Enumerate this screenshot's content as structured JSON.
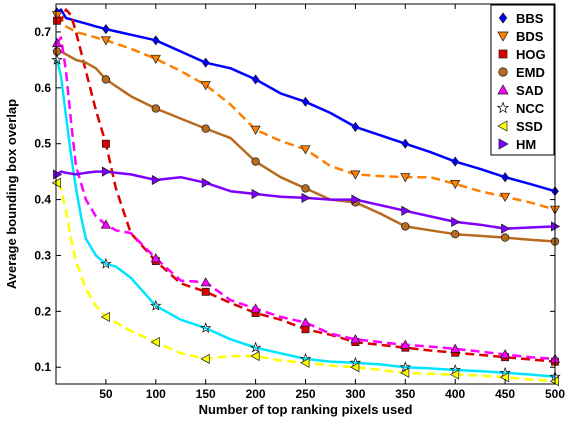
{
  "chart_data": {
    "type": "line",
    "title": "",
    "xlabel": "Number of top ranking pixels used",
    "ylabel": "Average bounding box overlap",
    "xlim": [
      0,
      500
    ],
    "ylim": [
      0.07,
      0.75
    ],
    "x_ticks": [
      50,
      100,
      150,
      200,
      250,
      300,
      350,
      400,
      450,
      500
    ],
    "y_ticks": [
      0.1,
      0.2,
      0.3,
      0.4,
      0.5,
      0.6,
      0.7
    ],
    "grid": false,
    "legend_position": "top-right",
    "series": [
      {
        "name": "BBS",
        "color": "#0000ff",
        "line_style": "solid",
        "marker": "diamond",
        "x": [
          1,
          5,
          10,
          20,
          30,
          40,
          50,
          75,
          100,
          125,
          150,
          175,
          200,
          225,
          250,
          275,
          300,
          325,
          350,
          375,
          400,
          425,
          450,
          475,
          500
        ],
        "y": [
          0.735,
          0.74,
          0.725,
          0.72,
          0.715,
          0.71,
          0.705,
          0.695,
          0.685,
          0.665,
          0.645,
          0.635,
          0.615,
          0.59,
          0.575,
          0.555,
          0.53,
          0.515,
          0.5,
          0.485,
          0.468,
          0.455,
          0.44,
          0.428,
          0.415
        ]
      },
      {
        "name": "BDS",
        "color": "#ff8000",
        "line_style": "dashed",
        "marker": "triangle-down",
        "x": [
          1,
          5,
          10,
          20,
          30,
          40,
          50,
          75,
          100,
          125,
          150,
          175,
          200,
          225,
          250,
          275,
          300,
          325,
          350,
          375,
          400,
          425,
          450,
          475,
          500
        ],
        "y": [
          0.73,
          0.725,
          0.71,
          0.7,
          0.695,
          0.69,
          0.685,
          0.67,
          0.652,
          0.63,
          0.605,
          0.57,
          0.525,
          0.505,
          0.49,
          0.46,
          0.445,
          0.442,
          0.44,
          0.44,
          0.428,
          0.415,
          0.405,
          0.395,
          0.382
        ]
      },
      {
        "name": "HOG",
        "color": "#dd0000",
        "line_style": "dashed",
        "marker": "square",
        "x": [
          1,
          5,
          10,
          15,
          20,
          30,
          40,
          50,
          60,
          75,
          100,
          125,
          150,
          175,
          200,
          225,
          250,
          275,
          300,
          325,
          350,
          375,
          400,
          425,
          450,
          475,
          500
        ],
        "y": [
          0.72,
          0.72,
          0.74,
          0.73,
          0.7,
          0.63,
          0.56,
          0.5,
          0.42,
          0.34,
          0.29,
          0.25,
          0.235,
          0.215,
          0.197,
          0.185,
          0.168,
          0.158,
          0.145,
          0.14,
          0.135,
          0.13,
          0.126,
          0.122,
          0.118,
          0.114,
          0.11
        ]
      },
      {
        "name": "EMD",
        "color": "#b86a1e",
        "line_style": "solid",
        "marker": "circle",
        "x": [
          1,
          5,
          10,
          20,
          30,
          40,
          50,
          75,
          100,
          125,
          150,
          175,
          200,
          225,
          250,
          275,
          300,
          325,
          350,
          375,
          400,
          425,
          450,
          475,
          500
        ],
        "y": [
          0.665,
          0.665,
          0.66,
          0.65,
          0.645,
          0.635,
          0.615,
          0.585,
          0.563,
          0.545,
          0.527,
          0.51,
          0.468,
          0.44,
          0.42,
          0.4,
          0.395,
          0.375,
          0.352,
          0.345,
          0.338,
          0.335,
          0.332,
          0.328,
          0.325
        ]
      },
      {
        "name": "SAD",
        "color": "#ff00ff",
        "line_style": "dashed",
        "marker": "triangle-up",
        "x": [
          1,
          5,
          10,
          15,
          20,
          30,
          40,
          50,
          60,
          75,
          100,
          125,
          150,
          175,
          200,
          225,
          250,
          275,
          300,
          325,
          350,
          375,
          400,
          425,
          450,
          475,
          500
        ],
        "y": [
          0.68,
          0.69,
          0.63,
          0.54,
          0.46,
          0.4,
          0.37,
          0.355,
          0.345,
          0.34,
          0.295,
          0.255,
          0.252,
          0.22,
          0.205,
          0.19,
          0.18,
          0.16,
          0.15,
          0.145,
          0.14,
          0.137,
          0.133,
          0.128,
          0.123,
          0.118,
          0.115
        ]
      },
      {
        "name": "NCC",
        "color": "#00e5ff",
        "line_style": "solid",
        "marker": "star",
        "x": [
          1,
          5,
          10,
          15,
          20,
          25,
          30,
          40,
          50,
          60,
          75,
          100,
          125,
          150,
          175,
          200,
          225,
          250,
          275,
          300,
          325,
          350,
          375,
          400,
          425,
          450,
          475,
          500
        ],
        "y": [
          0.65,
          0.62,
          0.55,
          0.48,
          0.42,
          0.37,
          0.33,
          0.3,
          0.285,
          0.28,
          0.26,
          0.21,
          0.185,
          0.17,
          0.15,
          0.135,
          0.125,
          0.115,
          0.11,
          0.108,
          0.105,
          0.1,
          0.098,
          0.095,
          0.093,
          0.09,
          0.087,
          0.083
        ]
      },
      {
        "name": "SSD",
        "color": "#ffff00",
        "line_style": "dashed",
        "marker": "triangle-left",
        "x": [
          1,
          5,
          10,
          15,
          20,
          30,
          40,
          50,
          60,
          75,
          100,
          125,
          150,
          175,
          200,
          225,
          250,
          275,
          300,
          325,
          350,
          375,
          400,
          425,
          450,
          475,
          500
        ],
        "y": [
          0.43,
          0.42,
          0.38,
          0.33,
          0.29,
          0.24,
          0.21,
          0.19,
          0.18,
          0.165,
          0.145,
          0.125,
          0.115,
          0.12,
          0.12,
          0.112,
          0.108,
          0.103,
          0.1,
          0.095,
          0.09,
          0.088,
          0.087,
          0.085,
          0.082,
          0.078,
          0.075
        ]
      },
      {
        "name": "HM",
        "color": "#8000ff",
        "line_style": "solid",
        "marker": "triangle-right",
        "x": [
          1,
          5,
          10,
          20,
          30,
          40,
          50,
          75,
          100,
          125,
          150,
          175,
          200,
          225,
          250,
          275,
          300,
          325,
          350,
          375,
          400,
          425,
          450,
          475,
          500
        ],
        "y": [
          0.445,
          0.45,
          0.448,
          0.445,
          0.448,
          0.45,
          0.45,
          0.445,
          0.435,
          0.44,
          0.43,
          0.415,
          0.41,
          0.405,
          0.403,
          0.4,
          0.4,
          0.39,
          0.38,
          0.37,
          0.36,
          0.355,
          0.348,
          0.35,
          0.352
        ]
      }
    ]
  }
}
